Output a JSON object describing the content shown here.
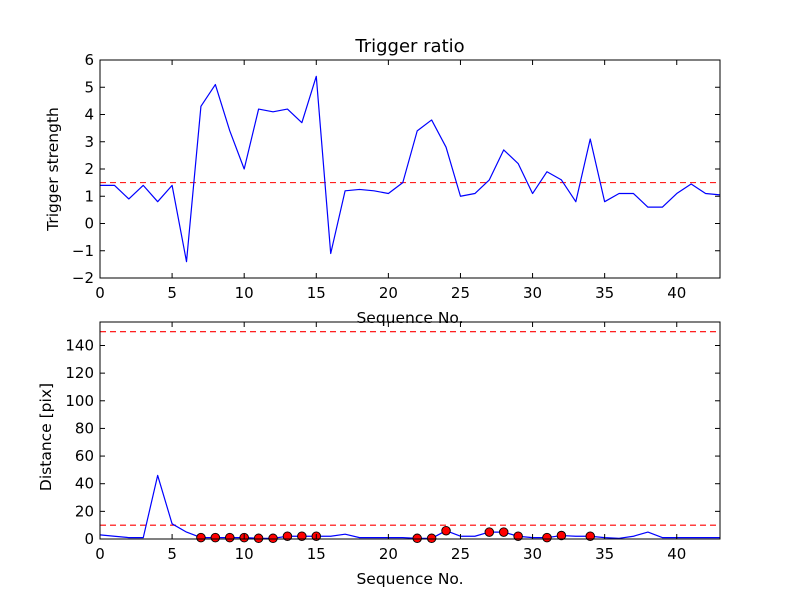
{
  "chart_data": [
    {
      "type": "line",
      "title": "Trigger ratio",
      "xlabel": "Sequence No.",
      "ylabel": "Trigger strength",
      "xlim": [
        0,
        43
      ],
      "ylim": [
        -2,
        6
      ],
      "xticks": [
        0,
        5,
        10,
        15,
        20,
        25,
        30,
        35,
        40
      ],
      "yticks": [
        -2,
        -1,
        0,
        1,
        2,
        3,
        4,
        5,
        6
      ],
      "xtick_labels": [
        "0",
        "5",
        "10",
        "15",
        "20",
        "25",
        "30",
        "35",
        "40"
      ],
      "ytick_labels": [
        "−2",
        "−1",
        "0",
        "1",
        "2",
        "3",
        "4",
        "5",
        "6"
      ],
      "grid": false,
      "series": [
        {
          "style": "solid",
          "color": "#0000ff",
          "x": [
            0,
            1,
            2,
            3,
            4,
            5,
            6,
            7,
            8,
            9,
            10,
            11,
            12,
            13,
            14,
            15,
            16,
            17,
            18,
            19,
            20,
            21,
            22,
            23,
            24,
            25,
            26,
            27,
            28,
            29,
            30,
            31,
            32,
            33,
            34,
            35,
            36,
            37,
            38,
            39,
            40,
            41,
            42,
            43
          ],
          "y": [
            1.4,
            1.4,
            0.9,
            1.4,
            0.8,
            1.4,
            -1.4,
            4.3,
            5.1,
            3.4,
            2.0,
            4.2,
            4.1,
            4.2,
            3.7,
            5.4,
            -1.1,
            1.2,
            1.25,
            1.2,
            1.1,
            1.5,
            3.4,
            3.8,
            2.8,
            1.0,
            1.1,
            1.6,
            2.7,
            2.2,
            1.1,
            1.9,
            1.6,
            0.8,
            3.1,
            0.8,
            1.1,
            1.1,
            0.6,
            0.6,
            1.1,
            1.45,
            1.1,
            1.05
          ]
        }
      ],
      "threshold": {
        "y": 1.5,
        "style": "dashed",
        "color": "#ff0000"
      }
    },
    {
      "type": "line",
      "title": "",
      "xlabel": "Sequence No.",
      "ylabel": "Distance [pix]",
      "xlim": [
        0,
        43
      ],
      "ylim": [
        0,
        157
      ],
      "xticks": [
        0,
        5,
        10,
        15,
        20,
        25,
        30,
        35,
        40
      ],
      "yticks": [
        0,
        20,
        40,
        60,
        80,
        100,
        120,
        140
      ],
      "xtick_labels": [
        "0",
        "5",
        "10",
        "15",
        "20",
        "25",
        "30",
        "35",
        "40"
      ],
      "ytick_labels": [
        "0",
        "20",
        "40",
        "60",
        "80",
        "100",
        "120",
        "140"
      ],
      "grid": false,
      "series": [
        {
          "style": "solid",
          "color": "#0000ff",
          "x": [
            0,
            1,
            2,
            3,
            4,
            5,
            6,
            7,
            8,
            9,
            10,
            11,
            12,
            13,
            14,
            15,
            16,
            17,
            18,
            19,
            20,
            21,
            22,
            23,
            24,
            25,
            26,
            27,
            28,
            29,
            30,
            31,
            32,
            33,
            34,
            35,
            36,
            37,
            38,
            39,
            40,
            41,
            42,
            43
          ],
          "y": [
            3,
            2,
            1,
            1,
            46,
            11,
            5,
            1,
            1,
            1,
            1,
            0.5,
            0.5,
            2,
            2,
            2,
            2,
            3.5,
            1,
            1,
            1,
            1,
            0.5,
            0.5,
            6,
            2,
            2,
            5,
            5,
            2,
            1,
            1,
            2.5,
            2,
            2,
            1,
            0.5,
            2,
            5,
            1,
            1,
            1,
            1,
            1
          ]
        },
        {
          "style": "markers",
          "color": "#ff0000",
          "x": [
            7,
            8,
            9,
            10,
            11,
            12,
            13,
            14,
            15,
            22,
            23,
            24,
            27,
            28,
            29,
            31,
            32,
            34
          ],
          "y": [
            1,
            1,
            1,
            1,
            0.5,
            0.5,
            2,
            2,
            2,
            0.5,
            0.5,
            6,
            5,
            5,
            2,
            1,
            2.5,
            2
          ]
        }
      ],
      "thresholds": [
        {
          "y": 150,
          "style": "dashed",
          "color": "#ff0000"
        },
        {
          "y": 10,
          "style": "dashed",
          "color": "#ff0000"
        }
      ]
    }
  ]
}
